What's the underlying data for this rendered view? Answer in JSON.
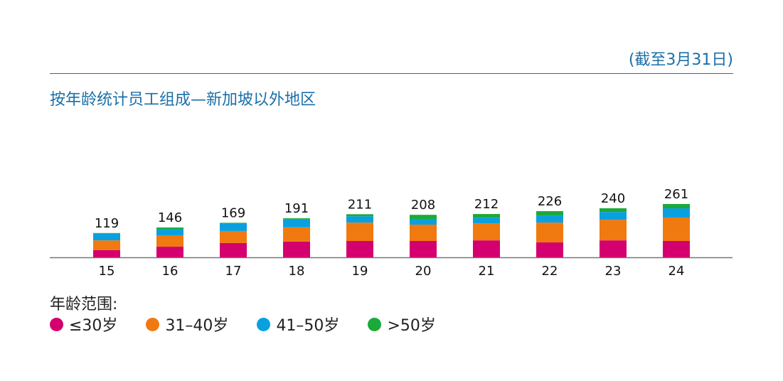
{
  "header": {
    "note": "(截至3月31日)"
  },
  "title": "按年龄统计员工组成—新加坡以外地区",
  "legend": {
    "title": "年龄范围:",
    "items": [
      {
        "label": "≤30岁",
        "color": "#d4006f"
      },
      {
        "label": "31–40岁",
        "color": "#f07a10"
      },
      {
        "label": "41–50岁",
        "color": "#0aa0e0"
      },
      {
        "label": ">50岁",
        "color": "#1aaa3a"
      }
    ]
  },
  "chart_data": {
    "type": "bar",
    "stacked": true,
    "categories": [
      "15",
      "16",
      "17",
      "18",
      "19",
      "20",
      "21",
      "22",
      "23",
      "24"
    ],
    "totals": [
      119,
      146,
      169,
      191,
      211,
      208,
      212,
      226,
      240,
      261
    ],
    "series": [
      {
        "name": "≤30岁",
        "color": "#d4006f",
        "values": [
          35,
          52,
          70,
          77,
          80,
          80,
          83,
          73,
          83,
          80
        ]
      },
      {
        "name": "31–40岁",
        "color": "#f07a10",
        "values": [
          48,
          56,
          59,
          70,
          90,
          80,
          83,
          97,
          101,
          115
        ]
      },
      {
        "name": "41–50岁",
        "color": "#0aa0e0",
        "values": [
          33,
          31,
          35,
          38,
          31,
          28,
          28,
          35,
          38,
          45
        ]
      },
      {
        "name": ">50岁",
        "color": "#1aaa3a",
        "values": [
          3,
          7,
          5,
          6,
          10,
          20,
          18,
          21,
          18,
          21
        ]
      }
    ],
    "ylim": [
      0,
      261
    ],
    "grid": false,
    "legend_position": "bottom-left"
  }
}
